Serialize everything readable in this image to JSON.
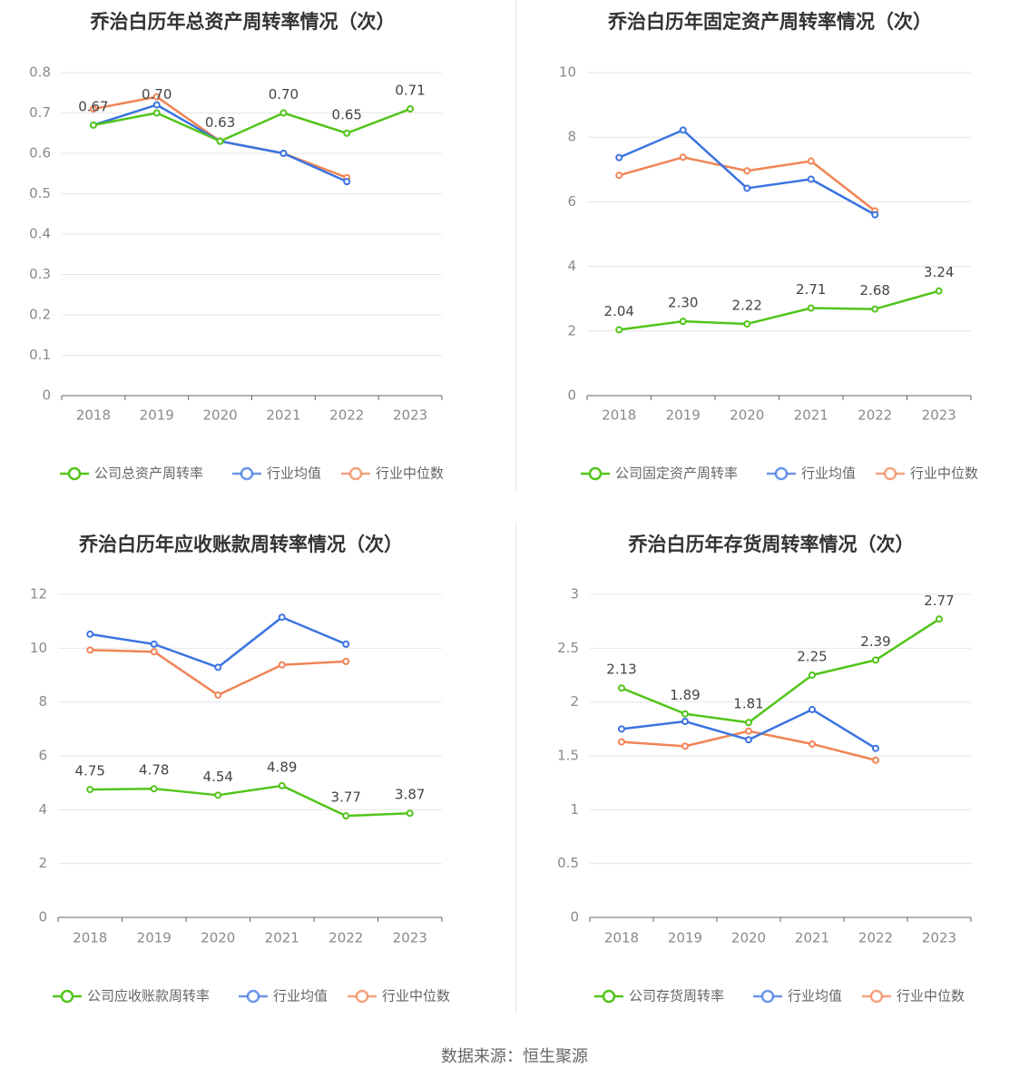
{
  "footer": {
    "source": "数据来源：恒生聚源"
  },
  "colors": {
    "company": "#52c41a",
    "avg": "#3b74e0",
    "median": "#f08455",
    "grid": "#e6e6e6",
    "axis": "#666666"
  },
  "chart_data": [
    {
      "type": "line",
      "title": "乔治白历年总资产周转率情况（次）",
      "categories": [
        "2018",
        "2019",
        "2020",
        "2021",
        "2022",
        "2023"
      ],
      "ylim": [
        0,
        0.8
      ],
      "yticks": [
        0,
        0.1,
        0.2,
        0.3,
        0.4,
        0.5,
        0.6,
        0.7,
        0.8
      ],
      "ytick_labels": [
        "0",
        "0.1",
        "0.2",
        "0.3",
        "0.4",
        "0.5",
        "0.6",
        "0.7",
        "0.8"
      ],
      "series": [
        {
          "name": "公司总资产周转率",
          "role": "company",
          "values": [
            0.67,
            0.7,
            0.63,
            0.7,
            0.65,
            0.71
          ],
          "labels": [
            "0.67",
            "0.70",
            "0.63",
            "0.70",
            "0.65",
            "0.71"
          ]
        },
        {
          "name": "行业均值",
          "role": "avg",
          "values": [
            0.67,
            0.72,
            0.63,
            0.6,
            0.53,
            null
          ]
        },
        {
          "name": "行业中位数",
          "role": "median",
          "values": [
            0.71,
            0.74,
            0.63,
            0.6,
            0.54,
            null
          ]
        }
      ],
      "grid": true,
      "legend": "bottom"
    },
    {
      "type": "line",
      "title": "乔治白历年固定资产周转率情况（次）",
      "categories": [
        "2018",
        "2019",
        "2020",
        "2021",
        "2022",
        "2023"
      ],
      "ylim": [
        0,
        10
      ],
      "yticks": [
        0,
        2,
        4,
        6,
        8,
        10
      ],
      "ytick_labels": [
        "0",
        "2",
        "4",
        "6",
        "8",
        "10"
      ],
      "series": [
        {
          "name": "公司固定资产周转率",
          "role": "company",
          "values": [
            2.04,
            2.3,
            2.22,
            2.71,
            2.68,
            3.24
          ],
          "labels": [
            "2.04",
            "2.30",
            "2.22",
            "2.71",
            "2.68",
            "3.24"
          ]
        },
        {
          "name": "行业均值",
          "role": "avg",
          "values": [
            7.37,
            8.22,
            6.42,
            6.7,
            5.6,
            null
          ]
        },
        {
          "name": "行业中位数",
          "role": "median",
          "values": [
            6.82,
            7.38,
            6.96,
            7.26,
            5.72,
            null
          ]
        }
      ],
      "grid": true,
      "legend": "bottom"
    },
    {
      "type": "line",
      "title": "乔治白历年应收账款周转率情况（次）",
      "categories": [
        "2018",
        "2019",
        "2020",
        "2021",
        "2022",
        "2023"
      ],
      "ylim": [
        0,
        12
      ],
      "yticks": [
        0,
        2,
        4,
        6,
        8,
        10,
        12
      ],
      "ytick_labels": [
        "0",
        "2",
        "4",
        "6",
        "8",
        "10",
        "12"
      ],
      "series": [
        {
          "name": "公司应收账款周转率",
          "role": "company",
          "values": [
            4.75,
            4.78,
            4.54,
            4.89,
            3.77,
            3.87
          ],
          "labels": [
            "4.75",
            "4.78",
            "4.54",
            "4.89",
            "3.77",
            "3.87"
          ]
        },
        {
          "name": "行业均值",
          "role": "avg",
          "values": [
            10.52,
            10.15,
            9.29,
            11.15,
            10.15,
            null
          ]
        },
        {
          "name": "行业中位数",
          "role": "median",
          "values": [
            9.93,
            9.87,
            8.26,
            9.38,
            9.51,
            null
          ]
        }
      ],
      "grid": true,
      "legend": "bottom"
    },
    {
      "type": "line",
      "title": "乔治白历年存货周转率情况（次）",
      "categories": [
        "2018",
        "2019",
        "2020",
        "2021",
        "2022",
        "2023"
      ],
      "ylim": [
        0,
        3
      ],
      "yticks": [
        0,
        0.5,
        1,
        1.5,
        2,
        2.5,
        3
      ],
      "ytick_labels": [
        "0",
        "0.5",
        "1",
        "1.5",
        "2",
        "2.5",
        "3"
      ],
      "series": [
        {
          "name": "公司存货周转率",
          "role": "company",
          "values": [
            2.13,
            1.89,
            1.81,
            2.25,
            2.39,
            2.77
          ],
          "labels": [
            "2.13",
            "1.89",
            "1.81",
            "2.25",
            "2.39",
            "2.77"
          ]
        },
        {
          "name": "行业均值",
          "role": "avg",
          "values": [
            1.75,
            1.82,
            1.65,
            1.93,
            1.57,
            null
          ]
        },
        {
          "name": "行业中位数",
          "role": "median",
          "values": [
            1.63,
            1.59,
            1.73,
            1.61,
            1.46,
            null
          ]
        }
      ],
      "grid": true,
      "legend": "bottom"
    }
  ]
}
